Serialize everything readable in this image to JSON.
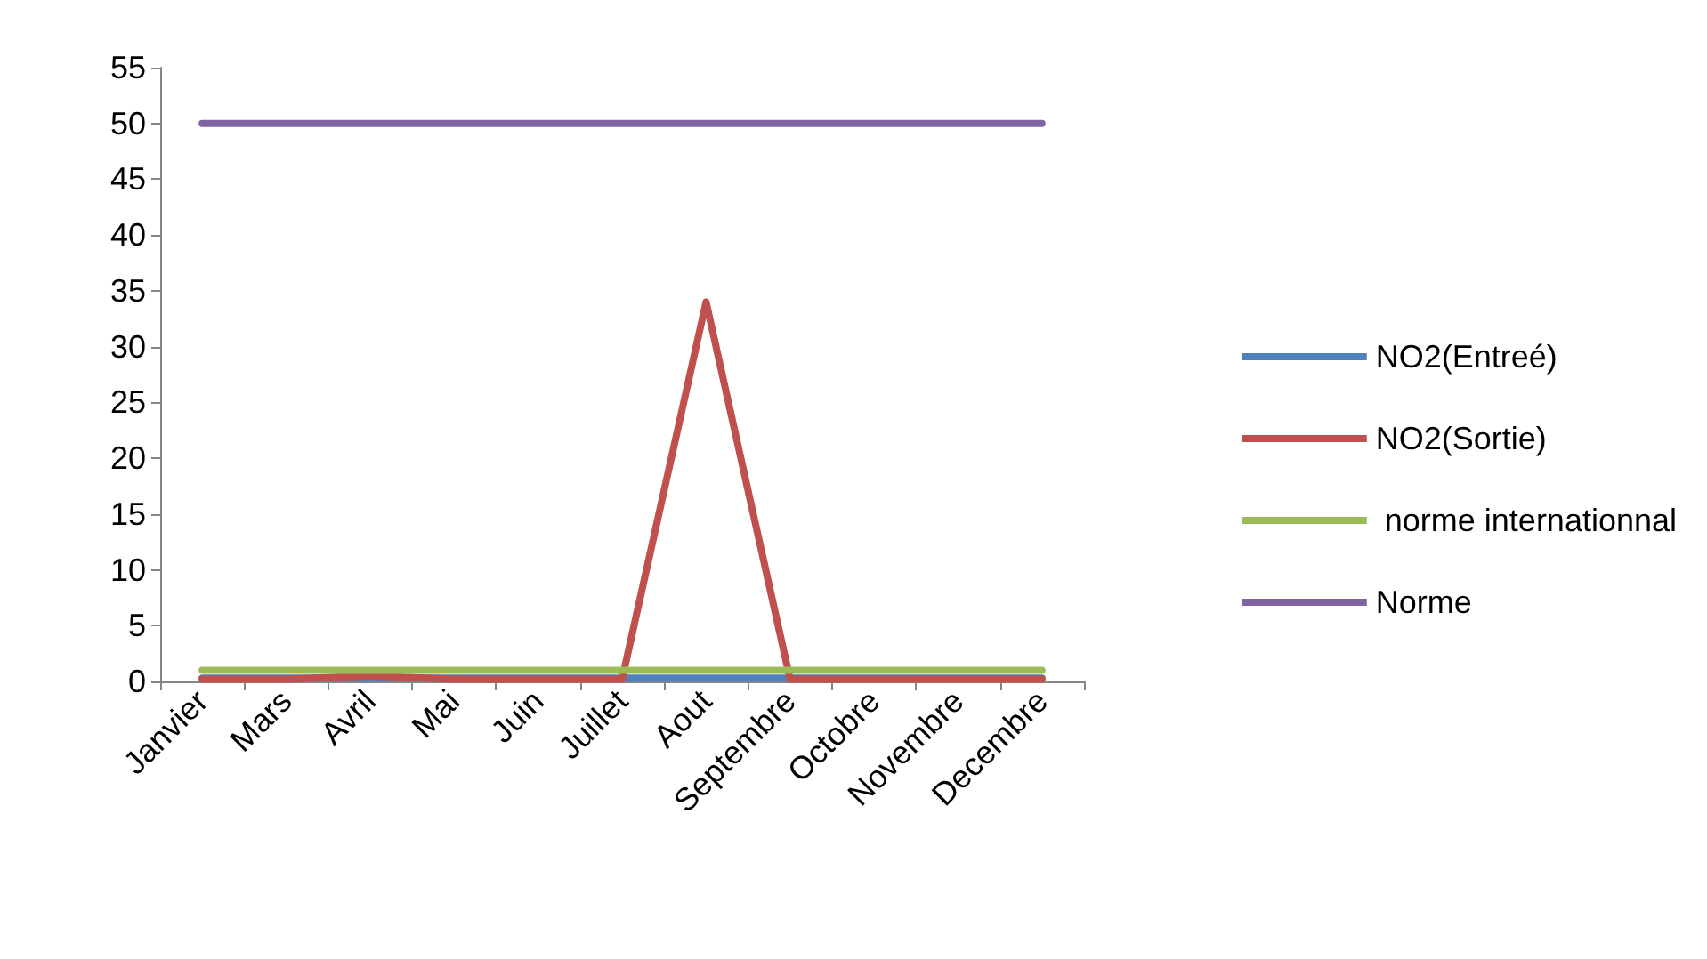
{
  "chart_data": {
    "type": "line",
    "categories": [
      "Janvier",
      "Mars",
      "Avril",
      "Mai",
      "Juin",
      "Juillet",
      "Aout",
      "Septembre",
      "Octobre",
      "Novembre",
      "Decembre"
    ],
    "series": [
      {
        "name": "NO2(Entreé)",
        "color": "#4f81bd",
        "values": [
          0.3,
          0.3,
          0.3,
          0.3,
          0.3,
          0.3,
          0.3,
          0.3,
          0.3,
          0.3,
          0.3
        ]
      },
      {
        "name": "NO2(Sortie)",
        "color": "#c0504d",
        "values": [
          0.2,
          0.2,
          0.5,
          0.2,
          0.2,
          0.2,
          34,
          0.2,
          0.2,
          0.2,
          0.2
        ]
      },
      {
        "name": " norme internationnal",
        "color": "#9bbb59",
        "values": [
          1,
          1,
          1,
          1,
          1,
          1,
          1,
          1,
          1,
          1,
          1
        ]
      },
      {
        "name": "Norme",
        "color": "#8064a2",
        "values": [
          50,
          50,
          50,
          50,
          50,
          50,
          50,
          50,
          50,
          50,
          50
        ]
      }
    ],
    "ylim": [
      0,
      55
    ],
    "yticks": [
      0,
      5,
      10,
      15,
      20,
      25,
      30,
      35,
      40,
      45,
      50,
      55
    ],
    "grid": false,
    "legend": "right",
    "marker": "none",
    "line_style": "solid"
  }
}
